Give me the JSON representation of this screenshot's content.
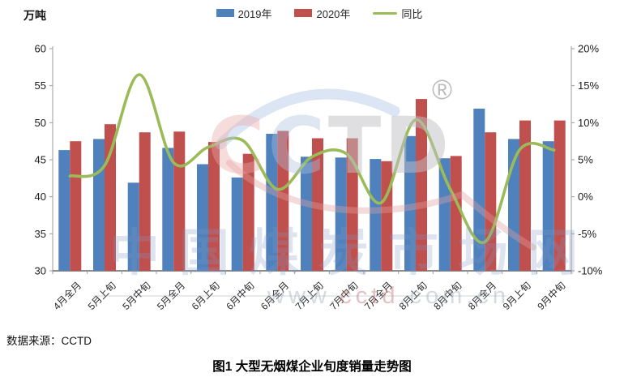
{
  "unit_label": "万吨",
  "legend": [
    {
      "label": "2019年",
      "type": "bar",
      "color": "#4F81BD"
    },
    {
      "label": "2020年",
      "type": "bar",
      "color": "#C0504D"
    },
    {
      "label": "同比",
      "type": "line",
      "color": "#9BBB59"
    }
  ],
  "source": "数据来源：CCTD",
  "caption": "图1 大型无烟煤企业旬度销量走势图",
  "watermark": {
    "logo_letters": [
      "C",
      "C",
      "T",
      "D"
    ],
    "registered_mark": "®",
    "site_name": "中国煤炭市场网",
    "url_prefix": "www.",
    "url_mid": "cctd",
    "url_suffix": ".com.cn"
  },
  "chart_data": {
    "type": "bar",
    "title": "图1 大型无烟煤企业旬度销量走势图",
    "categories": [
      "4月全月",
      "5月上旬",
      "5月中旬",
      "5月全月",
      "6月上旬",
      "6月中旬",
      "6月全月",
      "7月上旬",
      "7月中旬",
      "7月全月",
      "8月上旬",
      "8月中旬",
      "8月全月",
      "9月上旬",
      "9月中旬"
    ],
    "series": [
      {
        "name": "2019年",
        "type": "bar",
        "axis": "left",
        "color": "#4F81BD",
        "values": [
          46.3,
          47.8,
          41.9,
          46.6,
          44.4,
          42.6,
          48.5,
          45.4,
          45.3,
          45.1,
          48.2,
          45.2,
          51.9,
          47.8,
          47.5
        ]
      },
      {
        "name": "2020年",
        "type": "bar",
        "axis": "left",
        "color": "#C0504D",
        "values": [
          47.5,
          49.8,
          48.7,
          48.8,
          47.4,
          45.8,
          48.9,
          47.9,
          47.9,
          44.8,
          53.2,
          45.5,
          48.7,
          50.3,
          50.3
        ]
      },
      {
        "name": "同比",
        "type": "line",
        "axis": "right",
        "color": "#9BBB59",
        "values_pct": [
          2.8,
          4.2,
          16.5,
          4.6,
          6.7,
          7.6,
          1.0,
          5.4,
          5.8,
          -0.8,
          10.4,
          1.0,
          -6.1,
          6.3,
          6.3
        ]
      }
    ],
    "left_axis": {
      "title": "万吨",
      "min": 30,
      "max": 60,
      "step": 5,
      "tick_labels": [
        "30",
        "35",
        "40",
        "45",
        "50",
        "55",
        "60"
      ]
    },
    "right_axis": {
      "min": -10,
      "max": 20,
      "step": 5,
      "tick_labels": [
        "-10%",
        "-5%",
        "0%",
        "5%",
        "10%",
        "15%",
        "20%"
      ]
    },
    "legend_position": "top",
    "gridlines": false
  }
}
